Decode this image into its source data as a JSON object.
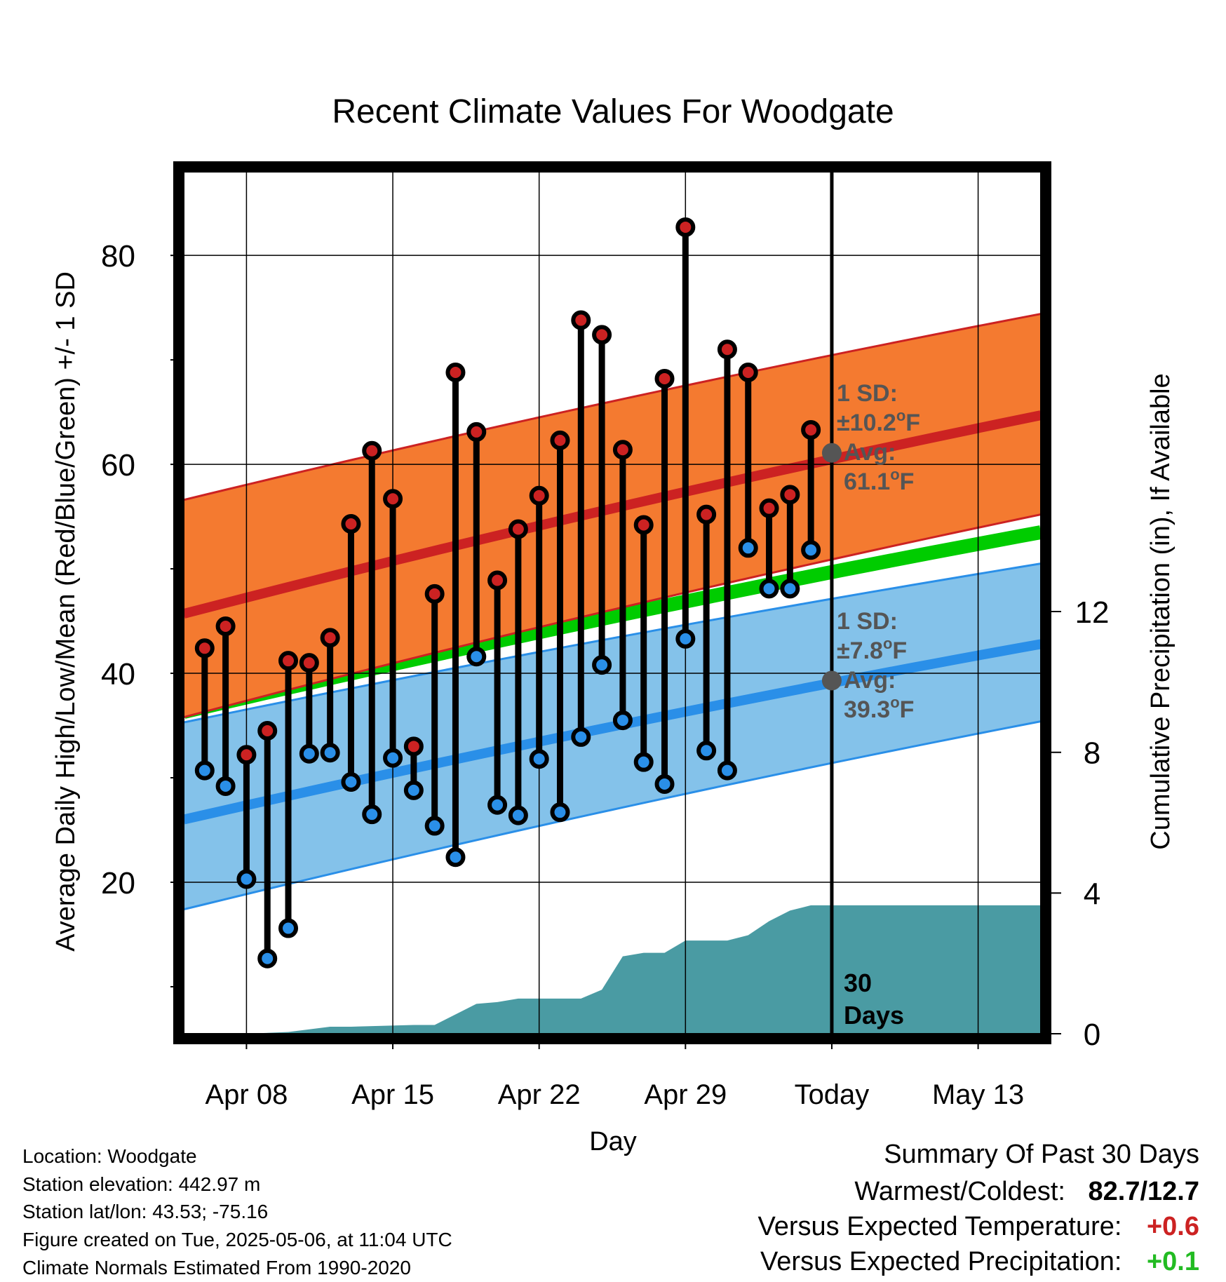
{
  "chart_data": {
    "type": "line",
    "title": "Recent Climate Values For Woodgate",
    "xlabel": "Day",
    "ylabel": "Average Daily High/Low/Mean (Red/Blue/Green) +/- 1 SD",
    "y2label": "Cumulative Precipitation (in), If Available",
    "xlim": [
      "2025-04-05",
      "2025-05-16"
    ],
    "ylim": [
      5.5,
      88
    ],
    "y2lim": [
      0,
      24.5
    ],
    "x_ticks": [
      {
        "date": "2025-04-08",
        "label": "Apr 08"
      },
      {
        "date": "2025-04-15",
        "label": "Apr 15"
      },
      {
        "date": "2025-04-22",
        "label": "Apr 22"
      },
      {
        "date": "2025-04-29",
        "label": "Apr 29"
      },
      {
        "date": "2025-05-06",
        "label": "Today"
      },
      {
        "date": "2025-05-13",
        "label": "May 13"
      }
    ],
    "y_ticks": [
      20,
      40,
      60,
      80
    ],
    "y2_ticks": [
      0,
      4,
      8,
      12
    ],
    "grid": true,
    "today": "2025-05-06",
    "normals": {
      "dates": [
        "2025-04-05",
        "2025-05-16"
      ],
      "high_mean": [
        45.7,
        64.7
      ],
      "high_upper": [
        56.6,
        74.4
      ],
      "high_lower": [
        35.8,
        55.2
      ],
      "mean": [
        36.3,
        53.5
      ],
      "low_mean": [
        26.0,
        42.8
      ],
      "low_upper": [
        35.3,
        50.5
      ],
      "low_lower": [
        17.4,
        35.4
      ]
    },
    "series": [
      {
        "name": "",
        "color": "#cc2222",
        "dates": [
          "2025-04-06",
          "2025-04-07",
          "2025-04-08",
          "2025-04-09",
          "2025-04-10",
          "2025-04-11",
          "2025-04-12",
          "2025-04-13",
          "2025-04-14",
          "2025-04-15",
          "2025-04-16",
          "2025-04-17",
          "2025-04-18",
          "2025-04-19",
          "2025-04-20",
          "2025-04-21",
          "2025-04-22",
          "2025-04-23",
          "2025-04-24",
          "2025-04-25",
          "2025-04-26",
          "2025-04-27",
          "2025-04-28",
          "2025-04-29",
          "2025-04-30",
          "2025-05-01",
          "2025-05-02",
          "2025-05-03",
          "2025-05-04",
          "2025-05-05"
        ],
        "values": [
          42.4,
          44.5,
          32.2,
          34.5,
          41.2,
          41.0,
          43.4,
          54.3,
          61.3,
          56.7,
          33.0,
          47.6,
          68.8,
          63.1,
          48.9,
          53.8,
          57.0,
          62.3,
          73.8,
          72.4,
          61.4,
          54.2,
          68.2,
          82.7,
          55.2,
          71.0,
          68.8,
          55.8,
          57.1,
          63.3
        ]
      },
      {
        "name": "",
        "color": "#2a8fe8",
        "dates": [
          "2025-04-06",
          "2025-04-07",
          "2025-04-08",
          "2025-04-09",
          "2025-04-10",
          "2025-04-11",
          "2025-04-12",
          "2025-04-13",
          "2025-04-14",
          "2025-04-15",
          "2025-04-16",
          "2025-04-17",
          "2025-04-18",
          "2025-04-19",
          "2025-04-20",
          "2025-04-21",
          "2025-04-22",
          "2025-04-23",
          "2025-04-24",
          "2025-04-25",
          "2025-04-26",
          "2025-04-27",
          "2025-04-28",
          "2025-04-29",
          "2025-04-30",
          "2025-05-01",
          "2025-05-02",
          "2025-05-03",
          "2025-05-04",
          "2025-05-05"
        ],
        "values": [
          30.7,
          29.2,
          20.3,
          12.7,
          15.6,
          32.3,
          32.4,
          29.6,
          26.5,
          31.9,
          28.8,
          25.4,
          22.4,
          41.6,
          27.4,
          26.4,
          31.8,
          26.7,
          33.9,
          40.8,
          35.5,
          31.5,
          29.4,
          43.3,
          32.6,
          30.7,
          52.0,
          48.1,
          48.1,
          51.8
        ]
      },
      {
        "name": "",
        "color": "#4a9ba3",
        "dates": [
          "2025-04-05",
          "2025-04-08",
          "2025-04-10",
          "2025-04-12",
          "2025-04-13",
          "2025-04-16",
          "2025-04-17",
          "2025-04-19",
          "2025-04-20",
          "2025-04-21",
          "2025-04-22",
          "2025-04-23",
          "2025-04-24",
          "2025-04-25",
          "2025-04-26",
          "2025-04-27",
          "2025-04-28",
          "2025-04-29",
          "2025-04-30",
          "2025-05-01",
          "2025-05-02",
          "2025-05-03",
          "2025-05-04",
          "2025-05-05",
          "2025-05-06",
          "2025-05-16"
        ],
        "values": [
          0,
          0,
          0.05,
          0.2,
          0.2,
          0.25,
          0.25,
          0.85,
          0.9,
          1.0,
          1.0,
          1.0,
          1.0,
          1.25,
          2.2,
          2.3,
          2.3,
          2.65,
          2.65,
          2.65,
          2.8,
          3.2,
          3.5,
          3.65,
          3.65,
          3.65
        ]
      }
    ],
    "annotations": {
      "high": {
        "sd_label": "1 SD:",
        "sd_value": "±10.2",
        "avg_label": "Avg:",
        "avg_value": "61.1",
        "unit": "oF",
        "avg": 61.1
      },
      "low": {
        "sd_label": "1 SD:",
        "sd_value": "±7.8",
        "avg_label": "Avg:",
        "avg_value": "39.3",
        "unit": "oF",
        "avg": 39.3
      },
      "days_line1": "30",
      "days_line2": "Days"
    }
  },
  "info": {
    "location": "Location: Woodgate",
    "elevation": "Station elevation: 442.97 m",
    "latlon": "Station lat/lon: 43.53; -75.16",
    "created": "Figure created on Tue, 2025-05-06, at 11:04 UTC",
    "normals": "Climate Normals Estimated From 1990-2020"
  },
  "summary": {
    "title": "Summary Of Past 30 Days",
    "warm_cold_label": "Warmest/Coldest:",
    "warm_cold_value": "82.7/12.7",
    "temp_label": "Versus Expected Temperature:",
    "temp_value": "+0.6",
    "temp_color": "#cc2222",
    "precip_label": "Versus Expected Precipitation:",
    "precip_value": "+0.1",
    "precip_color": "#22bb22"
  },
  "colors": {
    "high_band": "#f47a30",
    "high_line": "#cc2222",
    "mean_line": "#00cc00",
    "low_band": "#84c2ea",
    "low_line": "#2a8fe8",
    "precip": "#4a9ba3",
    "annotation": "#555555"
  }
}
